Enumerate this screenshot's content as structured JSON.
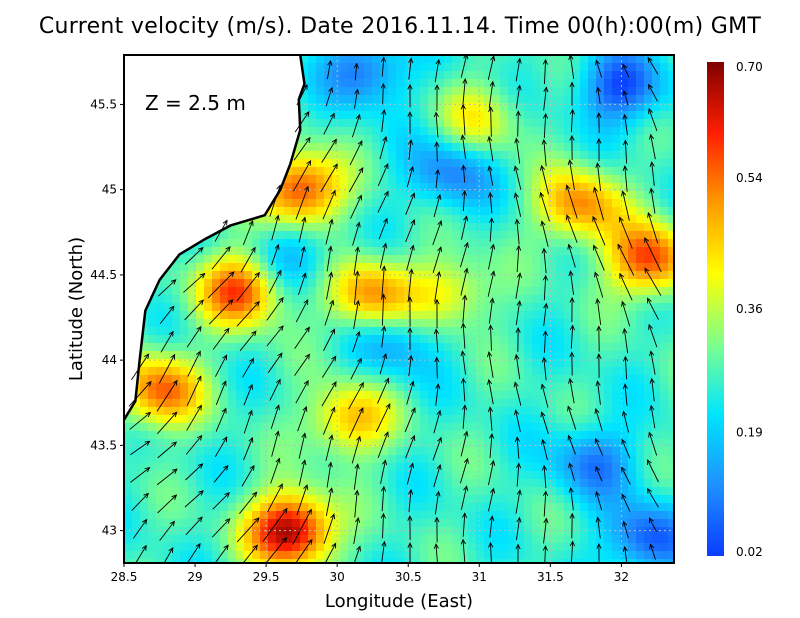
{
  "chart_data": {
    "type": "heatmap",
    "title": "Current velocity (m/s). Date 2016.11.14. Time 00(h):00(m) GMT",
    "xlabel": "Longitude (East)",
    "ylabel": "Latitude (North)",
    "annotation": "Z = 2.5 m",
    "xlim": [
      28.5,
      32.37
    ],
    "ylim": [
      42.81,
      45.79
    ],
    "xticks": [
      28.5,
      29,
      29.5,
      30,
      30.5,
      31,
      31.5,
      32
    ],
    "xtick_labels": [
      "28.5",
      "29",
      "29.5",
      "30",
      "30.5",
      "31",
      "31.5",
      "32"
    ],
    "yticks": [
      43,
      43.5,
      44,
      44.5,
      45,
      45.5
    ],
    "ytick_labels": [
      "43",
      "43.5",
      "44",
      "44.5",
      "45",
      "45.5"
    ],
    "grid": true,
    "colorbar": {
      "min": 0.02,
      "max": 0.7,
      "tick_values": [
        0.7,
        0.54,
        0.36,
        0.19,
        0.02
      ],
      "tick_labels": [
        "0.70",
        "0.54",
        "0.36",
        "0.19",
        "0.02"
      ],
      "colors": [
        "#0a3cff",
        "#1e90ff",
        "#00e5ff",
        "#7dff8c",
        "#ffff00",
        "#ff9a00",
        "#ff1e00",
        "#800000"
      ]
    },
    "background_speed": 0.26,
    "speed_features": [
      {
        "lon": 29.67,
        "lat": 43.0,
        "value": 0.7
      },
      {
        "lon": 29.74,
        "lat": 45.0,
        "value": 0.6
      },
      {
        "lon": 32.2,
        "lat": 44.59,
        "value": 0.58
      },
      {
        "lon": 29.32,
        "lat": 44.41,
        "value": 0.58
      },
      {
        "lon": 28.75,
        "lat": 43.82,
        "value": 0.55
      },
      {
        "lon": 30.23,
        "lat": 44.38,
        "value": 0.52
      },
      {
        "lon": 31.71,
        "lat": 44.91,
        "value": 0.52
      },
      {
        "lon": 30.09,
        "lat": 43.65,
        "value": 0.48
      },
      {
        "lon": 30.8,
        "lat": 44.4,
        "value": 0.42
      },
      {
        "lon": 31.0,
        "lat": 45.41,
        "value": 0.4
      },
      {
        "lon": 32.0,
        "lat": 45.6,
        "value": 0.04
      },
      {
        "lon": 30.8,
        "lat": 45.1,
        "value": 0.1
      },
      {
        "lon": 31.8,
        "lat": 43.4,
        "value": 0.1
      },
      {
        "lon": 30.4,
        "lat": 44.1,
        "value": 0.14
      },
      {
        "lon": 29.7,
        "lat": 44.6,
        "value": 0.14
      },
      {
        "lon": 32.2,
        "lat": 42.95,
        "value": 0.05
      },
      {
        "lon": 30.2,
        "lat": 45.7,
        "value": 0.08
      }
    ],
    "coastline": [
      [
        28.5,
        45.79
      ],
      [
        29.74,
        45.79
      ],
      [
        29.77,
        45.62
      ],
      [
        29.73,
        45.53
      ],
      [
        29.74,
        45.35
      ],
      [
        29.67,
        45.15
      ],
      [
        29.6,
        45.0
      ],
      [
        29.49,
        44.85
      ],
      [
        29.25,
        44.79
      ],
      [
        29.07,
        44.71
      ],
      [
        28.89,
        44.62
      ],
      [
        28.75,
        44.47
      ],
      [
        28.65,
        44.29
      ],
      [
        28.61,
        44.0
      ],
      [
        28.58,
        43.76
      ],
      [
        28.5,
        43.65
      ]
    ]
  }
}
